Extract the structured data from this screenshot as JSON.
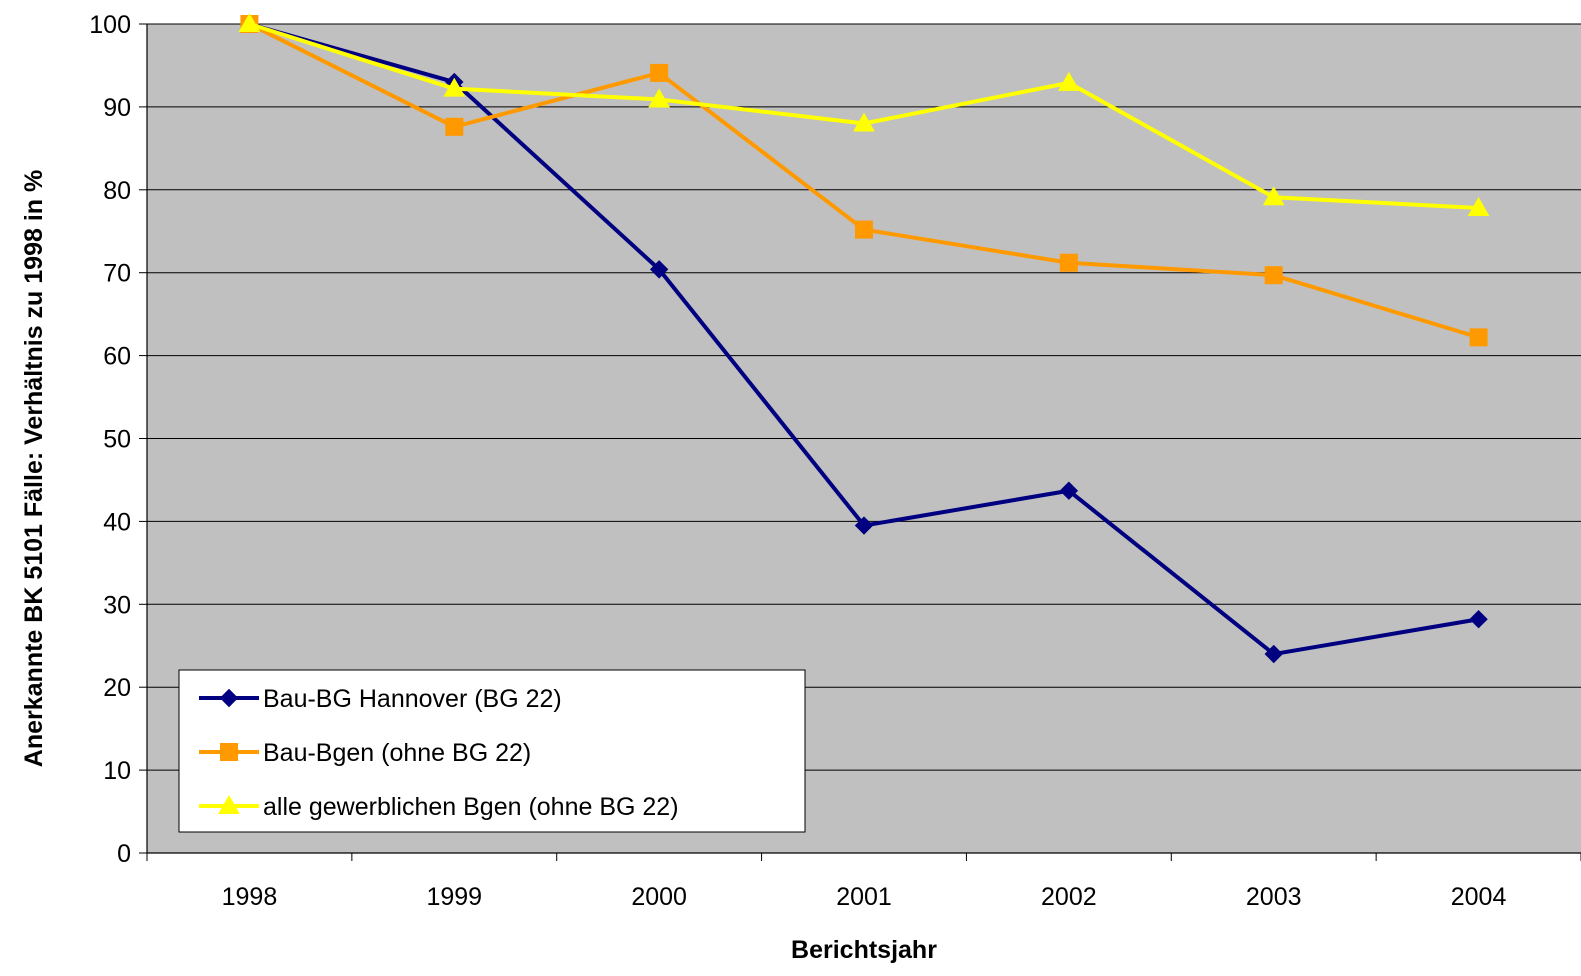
{
  "chart_data": {
    "type": "line",
    "title": "",
    "xlabel": "Berichtsjahr",
    "ylabel": "Anerkannte BK 5101 Fälle: Verhältnis zu 1998 in %",
    "categories": [
      "1998",
      "1999",
      "2000",
      "2001",
      "2002",
      "2003",
      "2004"
    ],
    "ylim": [
      0,
      100
    ],
    "yticks": [
      0,
      10,
      20,
      30,
      40,
      50,
      60,
      70,
      80,
      90,
      100
    ],
    "grid": true,
    "plot_background": "#c0c0c0",
    "legend_position": "bottom-left",
    "series": [
      {
        "name": "Bau-BG Hannover (BG 22)",
        "color": "#000080",
        "marker": "diamond",
        "values": [
          100,
          93,
          70.4,
          39.5,
          43.7,
          24,
          28.2
        ]
      },
      {
        "name": "Bau-Bgen (ohne BG 22)",
        "color": "#ff9900",
        "marker": "square",
        "values": [
          100,
          87.6,
          94.1,
          75.2,
          71.2,
          69.7,
          62.2
        ]
      },
      {
        "name": "alle gewerblichen Bgen (ohne BG 22)",
        "color": "#ffff00",
        "marker": "triangle",
        "values": [
          100,
          92.2,
          90.9,
          88,
          92.9,
          79.1,
          77.8
        ]
      }
    ]
  }
}
